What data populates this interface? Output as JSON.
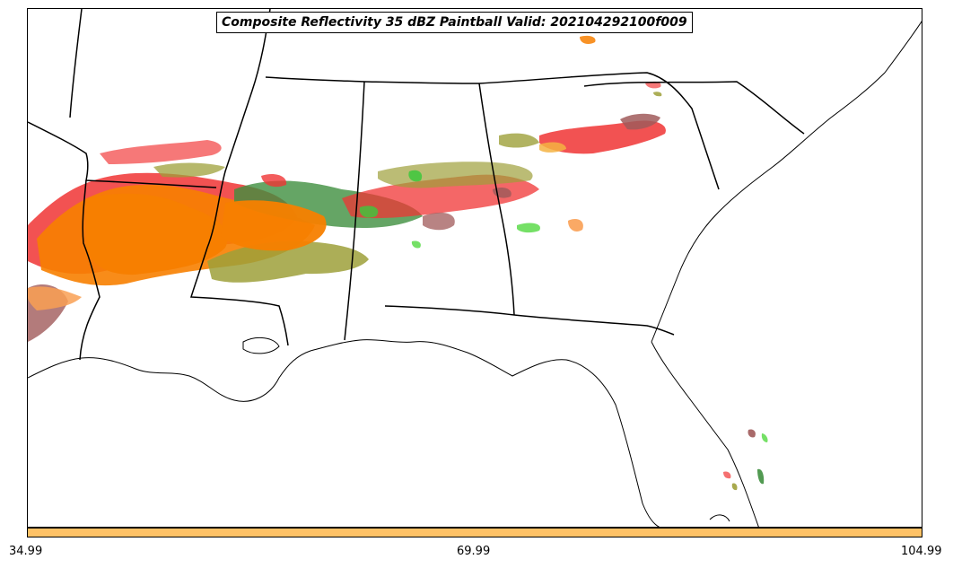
{
  "title": "Composite Reflectivity 35 dBZ Paintball Valid: 202104292100f009",
  "colorbar": {
    "color": "#ffc266",
    "ticks": [
      "34.99",
      "69.99",
      "104.99"
    ]
  },
  "colors": {
    "paint_orange": "#f77f00",
    "paint_light_orange": "#f9a054",
    "paint_red": "#f03434",
    "paint_light_red": "#f46060",
    "paint_olive": "#9ea03a",
    "paint_dark_green": "#3f8f3f",
    "paint_green": "#3cc83c",
    "paint_light_green": "#66dd55",
    "paint_mauve": "#a05a5a",
    "paint_gold": "#f5b342",
    "coastline": "#000000"
  }
}
